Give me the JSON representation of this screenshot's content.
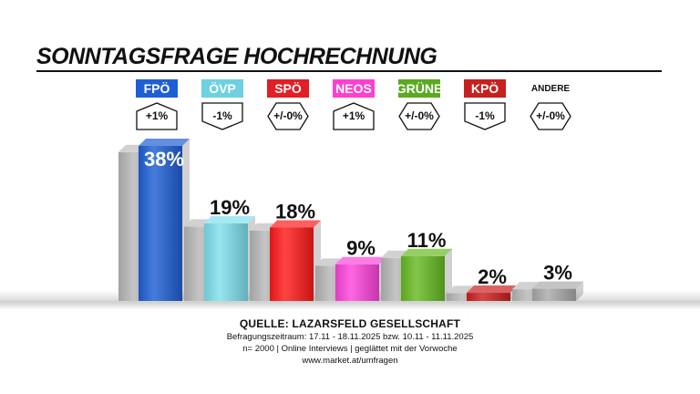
{
  "title": "SONNTAGSFRAGE HOCHRECHNUNG",
  "footer": {
    "source": "QUELLE: LAZARSFELD GESELLSCHAFT",
    "period": "Befragungszeitraum:    17.11 - 18.11.2025    bzw.    10.11 - 11.11.2025",
    "sample": "n= 2000 | Online Interviews | geglättet mit der Vorwoche",
    "url": "www.market.at/umfragen"
  },
  "chart_data": {
    "type": "bar",
    "title": "SONNTAGSFRAGE HOCHRECHNUNG",
    "categories": [
      "FPÖ",
      "ÖVP",
      "SPÖ",
      "NEOS",
      "GRÜNE",
      "KPÖ",
      "ANDERE"
    ],
    "series": [
      {
        "values": [
          38,
          19,
          18,
          9,
          11,
          2,
          3
        ]
      }
    ],
    "value_labels": [
      "38%",
      "19%",
      "18%",
      "9%",
      "11%",
      "2%",
      "3%"
    ],
    "changes": [
      "+1%",
      "-1%",
      "+/-0%",
      "+1%",
      "+/-0%",
      "-1%",
      "+/-0%"
    ],
    "change_direction": [
      "up",
      "down",
      "flat",
      "up",
      "flat",
      "down",
      "flat"
    ],
    "colors": [
      "#1f5fd6",
      "#7fe0ee",
      "#ff1a1a",
      "#ff44dd",
      "#66bb22",
      "#cc1f1f",
      "#aaaaaa"
    ],
    "label_colors": [
      "#1f5fd6",
      "#6fd0e0",
      "#e31e24",
      "#ff3fd0",
      "#5aaa22",
      "#c8201f",
      null
    ],
    "previous_bar_color": "#b8b8b8",
    "ylim": [
      0,
      40
    ],
    "xlabel": "",
    "ylabel": "",
    "grid": false,
    "legend": "none"
  }
}
